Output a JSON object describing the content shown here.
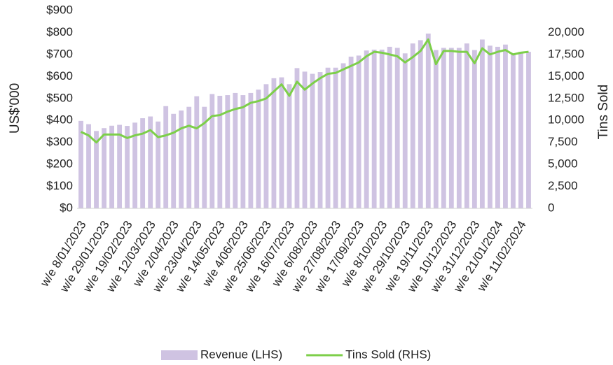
{
  "chart_data": {
    "type": "bar_line",
    "y_label": "US$'000",
    "y2_label": "Tins Sold",
    "categories": [
      "w/e 8/01/2023",
      null,
      null,
      "w/e 29/01/2023",
      null,
      null,
      "w/e 19/02/2023",
      null,
      null,
      "w/e 12/03/2023",
      null,
      null,
      "w/e 2/04/2023",
      null,
      null,
      "w/e 23/04/2023",
      null,
      null,
      "w/e 14/05/2023",
      null,
      null,
      "w/e 4/06/2023",
      null,
      null,
      "w/e 25/06/2023",
      null,
      null,
      "w/e 16/07/2023",
      null,
      null,
      "w/e 6/08/2023",
      null,
      null,
      "w/e 27/08/2023",
      null,
      null,
      "w/e 17/09/2023",
      null,
      null,
      "w/e 8/10/2023",
      null,
      null,
      "w/e 29/10/2023",
      null,
      null,
      "w/e 19/11/2023",
      null,
      null,
      "w/e 10/12/2023",
      null,
      null,
      "w/e 31/12/2023",
      null,
      null,
      "w/e 21/01/2024",
      null,
      null,
      "w/e 11/02/2024",
      null
    ],
    "series": [
      {
        "name": "Revenue (LHS)",
        "type": "bar",
        "color": "#cfc3e2",
        "values": [
          398,
          383,
          352,
          365,
          376,
          380,
          375,
          390,
          410,
          418,
          395,
          465,
          430,
          445,
          462,
          510,
          462,
          520,
          512,
          515,
          525,
          515,
          525,
          540,
          565,
          592,
          596,
          565,
          638,
          622,
          612,
          620,
          640,
          640,
          660,
          690,
          695,
          718,
          722,
          722,
          735,
          730,
          705,
          750,
          765,
          795,
          720,
          730,
          730,
          730,
          750,
          720,
          768,
          740,
          735,
          745,
          705,
          712,
          712
        ]
      },
      {
        "name": "Tins Sold (RHS)",
        "type": "line",
        "axis": "y2",
        "color": "#7dcf4a",
        "values": [
          8700,
          8300,
          7500,
          8400,
          8400,
          8400,
          8000,
          8300,
          8500,
          8900,
          8100,
          8300,
          8600,
          9100,
          9400,
          9100,
          9700,
          10500,
          10600,
          11000,
          11300,
          11500,
          12000,
          12200,
          12500,
          13300,
          14100,
          12800,
          14400,
          13500,
          14200,
          14800,
          15300,
          15400,
          15800,
          16200,
          16600,
          17300,
          17800,
          17700,
          17500,
          17300,
          16600,
          17200,
          17900,
          19200,
          16400,
          17900,
          17900,
          17800,
          17800,
          16500,
          18200,
          17500,
          17800,
          18000,
          17500,
          17700,
          17800
        ]
      }
    ],
    "ylim": [
      0,
      900
    ],
    "yticks": [
      {
        "value": 0,
        "label": "$0"
      },
      {
        "value": 100,
        "label": "$100"
      },
      {
        "value": 200,
        "label": "$200"
      },
      {
        "value": 300,
        "label": "$300"
      },
      {
        "value": 400,
        "label": "$400"
      },
      {
        "value": 500,
        "label": "$500"
      },
      {
        "value": 600,
        "label": "$600"
      },
      {
        "value": 700,
        "label": "$700"
      },
      {
        "value": 800,
        "label": "$800"
      },
      {
        "value": 900,
        "label": "$900"
      }
    ],
    "y2lim": [
      0,
      22500
    ],
    "y2ticks": [
      0,
      {
        "value": 2500,
        "label": "2,500"
      },
      {
        "value": 5000,
        "label": "5,000"
      },
      {
        "value": 7500,
        "label": "7,500"
      },
      {
        "value": 10000,
        "label": "10,000"
      },
      {
        "value": 12500,
        "label": "12,500"
      },
      {
        "value": 15000,
        "label": "15,000"
      },
      {
        "value": 17500,
        "label": "17,500"
      },
      {
        "value": 20000,
        "label": "20,000"
      }
    ],
    "legend": "bottom"
  }
}
